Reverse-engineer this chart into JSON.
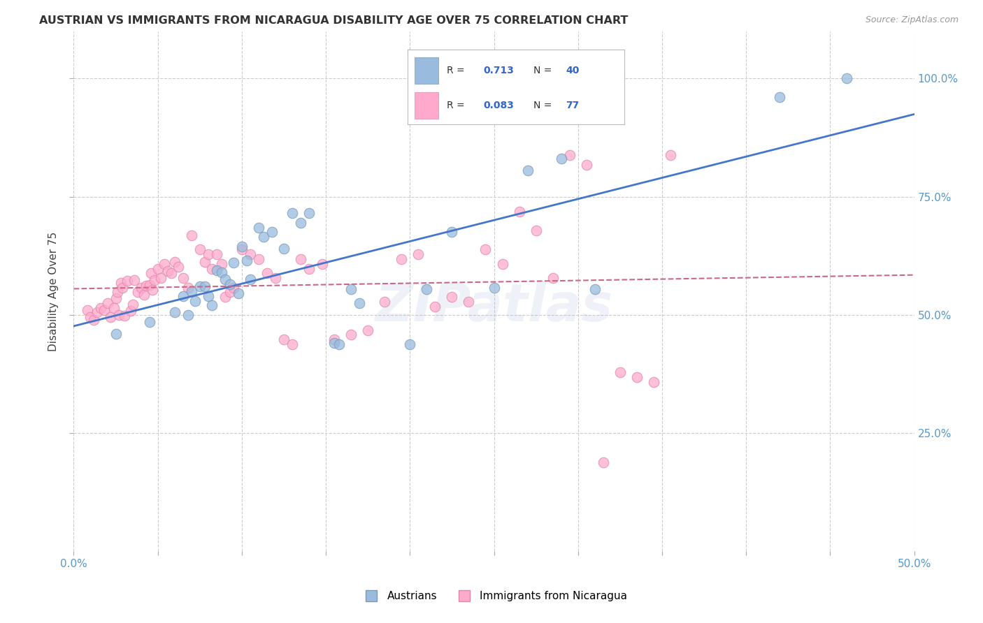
{
  "title": "AUSTRIAN VS IMMIGRANTS FROM NICARAGUA DISABILITY AGE OVER 75 CORRELATION CHART",
  "source": "Source: ZipAtlas.com",
  "ylabel": "Disability Age Over 75",
  "xlim": [
    0.0,
    0.5
  ],
  "ylim": [
    0.0,
    1.1
  ],
  "xtick_vals": [
    0.0,
    0.5
  ],
  "xtick_labels": [
    "0.0%",
    "50.0%"
  ],
  "ytick_vals": [
    0.25,
    0.5,
    0.75,
    1.0
  ],
  "ytick_labels_right": [
    "25.0%",
    "50.0%",
    "75.0%",
    "100.0%"
  ],
  "blue_R": 0.713,
  "blue_N": 40,
  "pink_R": 0.083,
  "pink_N": 77,
  "blue_color": "#99BBDD",
  "pink_color": "#FFAACC",
  "blue_edge_color": "#7799BB",
  "pink_edge_color": "#DD88AA",
  "blue_line_color": "#4477CC",
  "pink_line_color": "#CC6688",
  "watermark": "ZIPatlas",
  "legend_label_blue": "Austrians",
  "legend_label_pink": "Immigrants from Nicaragua",
  "blue_scatter_x": [
    0.025,
    0.045,
    0.06,
    0.065,
    0.068,
    0.07,
    0.072,
    0.075,
    0.078,
    0.08,
    0.082,
    0.085,
    0.088,
    0.09,
    0.093,
    0.095,
    0.098,
    0.1,
    0.103,
    0.105,
    0.11,
    0.113,
    0.118,
    0.125,
    0.13,
    0.135,
    0.14,
    0.155,
    0.158,
    0.165,
    0.17,
    0.2,
    0.21,
    0.225,
    0.25,
    0.27,
    0.29,
    0.31,
    0.42,
    0.46
  ],
  "blue_scatter_y": [
    0.46,
    0.485,
    0.505,
    0.54,
    0.5,
    0.55,
    0.53,
    0.56,
    0.56,
    0.54,
    0.52,
    0.595,
    0.59,
    0.575,
    0.565,
    0.61,
    0.545,
    0.645,
    0.615,
    0.575,
    0.685,
    0.665,
    0.675,
    0.64,
    0.715,
    0.695,
    0.715,
    0.44,
    0.438,
    0.555,
    0.525,
    0.438,
    0.555,
    0.675,
    0.558,
    0.805,
    0.83,
    0.555,
    0.96,
    1.0
  ],
  "pink_scatter_x": [
    0.008,
    0.01,
    0.012,
    0.014,
    0.016,
    0.018,
    0.02,
    0.022,
    0.024,
    0.025,
    0.026,
    0.027,
    0.028,
    0.029,
    0.03,
    0.032,
    0.034,
    0.035,
    0.036,
    0.038,
    0.04,
    0.042,
    0.043,
    0.045,
    0.046,
    0.047,
    0.048,
    0.05,
    0.052,
    0.054,
    0.056,
    0.058,
    0.06,
    0.062,
    0.065,
    0.068,
    0.07,
    0.075,
    0.078,
    0.08,
    0.082,
    0.085,
    0.088,
    0.09,
    0.093,
    0.095,
    0.1,
    0.105,
    0.11,
    0.115,
    0.12,
    0.125,
    0.13,
    0.135,
    0.14,
    0.148,
    0.155,
    0.165,
    0.175,
    0.185,
    0.195,
    0.205,
    0.215,
    0.225,
    0.235,
    0.245,
    0.255,
    0.265,
    0.275,
    0.285,
    0.295,
    0.305,
    0.315,
    0.325,
    0.335,
    0.345,
    0.355
  ],
  "pink_scatter_y": [
    0.51,
    0.495,
    0.49,
    0.505,
    0.515,
    0.51,
    0.525,
    0.495,
    0.515,
    0.535,
    0.548,
    0.5,
    0.568,
    0.558,
    0.498,
    0.572,
    0.508,
    0.522,
    0.573,
    0.548,
    0.558,
    0.543,
    0.562,
    0.563,
    0.588,
    0.553,
    0.573,
    0.598,
    0.578,
    0.608,
    0.593,
    0.588,
    0.612,
    0.602,
    0.578,
    0.558,
    0.668,
    0.638,
    0.612,
    0.628,
    0.598,
    0.628,
    0.608,
    0.538,
    0.548,
    0.558,
    0.638,
    0.628,
    0.618,
    0.588,
    0.578,
    0.448,
    0.438,
    0.618,
    0.598,
    0.608,
    0.448,
    0.458,
    0.468,
    0.528,
    0.618,
    0.628,
    0.518,
    0.538,
    0.528,
    0.638,
    0.608,
    0.718,
    0.678,
    0.578,
    0.838,
    0.818,
    0.188,
    0.378,
    0.368,
    0.358,
    0.838
  ]
}
